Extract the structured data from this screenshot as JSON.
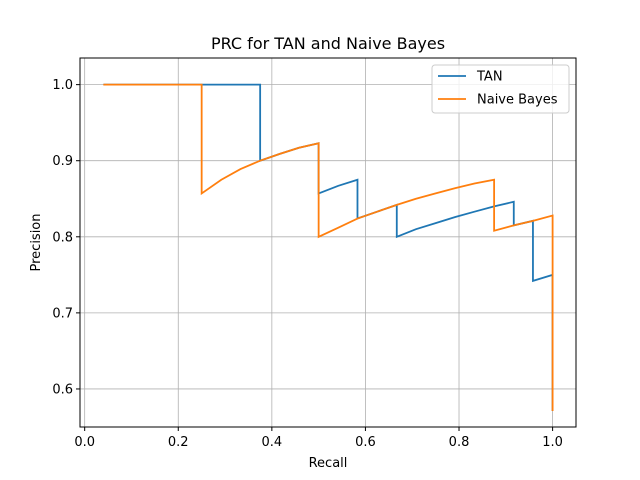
{
  "chart_data": {
    "type": "line",
    "title": "PRC for TAN and Naive Bayes",
    "xlabel": "Recall",
    "ylabel": "Precision",
    "xlim": [
      -0.01,
      1.05
    ],
    "ylim": [
      0.55,
      1.035
    ],
    "xticks": [
      0.0,
      0.2,
      0.4,
      0.6,
      0.8,
      1.0
    ],
    "yticks": [
      0.6,
      0.7,
      0.8,
      0.9,
      1.0
    ],
    "xtick_labels": [
      "0.0",
      "0.2",
      "0.4",
      "0.6",
      "0.8",
      "1.0"
    ],
    "ytick_labels": [
      "0.6",
      "0.7",
      "0.8",
      "0.9",
      "1.0"
    ],
    "grid": true,
    "legend_position": "upper right",
    "series": [
      {
        "name": "TAN",
        "color": "#1f77b4",
        "x": [
          0.04,
          0.08,
          0.125,
          0.167,
          0.208,
          0.25,
          0.292,
          0.333,
          0.375,
          0.375,
          0.417,
          0.458,
          0.5,
          0.5,
          0.542,
          0.583,
          0.583,
          0.625,
          0.667,
          0.667,
          0.708,
          0.75,
          0.792,
          0.833,
          0.875,
          0.917,
          0.917,
          0.958,
          0.958,
          1.0,
          1.0
        ],
        "y": [
          1.0,
          1.0,
          1.0,
          1.0,
          1.0,
          1.0,
          1.0,
          1.0,
          1.0,
          0.9,
          0.909,
          0.917,
          0.923,
          0.857,
          0.867,
          0.875,
          0.824,
          0.833,
          0.842,
          0.8,
          0.81,
          0.818,
          0.826,
          0.833,
          0.84,
          0.846,
          0.815,
          0.821,
          0.742,
          0.75,
          0.571
        ]
      },
      {
        "name": "Naive Bayes",
        "color": "#ff7f0e",
        "x": [
          0.04,
          0.08,
          0.125,
          0.167,
          0.208,
          0.25,
          0.25,
          0.292,
          0.333,
          0.375,
          0.417,
          0.458,
          0.5,
          0.5,
          0.542,
          0.583,
          0.625,
          0.667,
          0.708,
          0.75,
          0.792,
          0.833,
          0.875,
          0.875,
          0.917,
          0.958,
          1.0,
          1.0
        ],
        "y": [
          1.0,
          1.0,
          1.0,
          1.0,
          1.0,
          1.0,
          0.857,
          0.875,
          0.889,
          0.9,
          0.909,
          0.917,
          0.923,
          0.8,
          0.812,
          0.824,
          0.833,
          0.842,
          0.85,
          0.857,
          0.864,
          0.87,
          0.875,
          0.808,
          0.815,
          0.821,
          0.828,
          0.571
        ]
      }
    ]
  }
}
